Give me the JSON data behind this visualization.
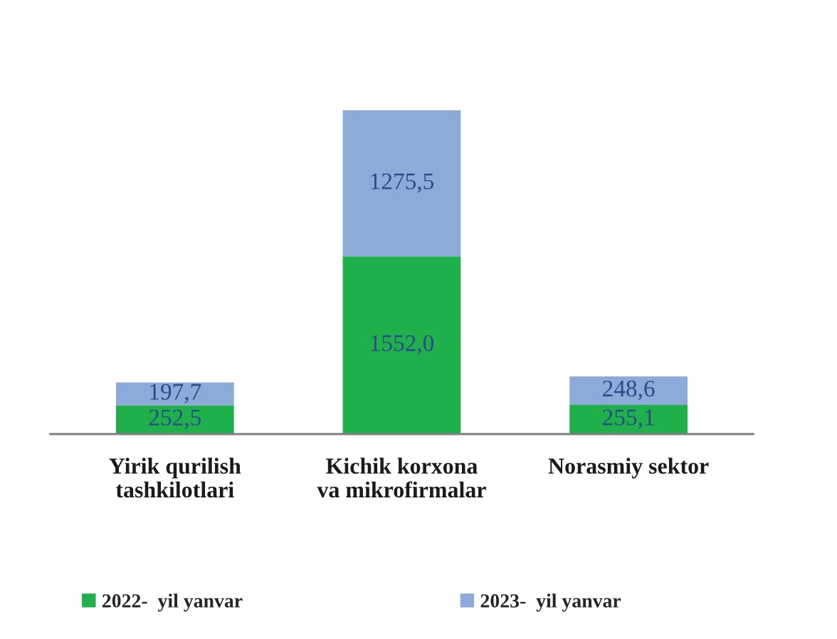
{
  "chart_data": {
    "type": "bar",
    "stacked": true,
    "categories": [
      "Yirik qurilish\ntashkilotlari",
      "Kichik korxona\nva mikrofirmalar",
      "Norasmiy sektor"
    ],
    "series": [
      {
        "name": "2022-  yil yanvar",
        "color": "#1fb04c",
        "values": [
          252.5,
          1552.0,
          255.1
        ],
        "value_labels": [
          "252,5",
          "1552,0",
          "255,1"
        ]
      },
      {
        "name": "2023-  yil yanvar",
        "color": "#8cabd9",
        "values": [
          197.7,
          1275.5,
          248.6
        ],
        "value_labels": [
          "197,7",
          "1275,5",
          "248,6"
        ]
      }
    ],
    "legend": "bottom",
    "grid": false
  }
}
